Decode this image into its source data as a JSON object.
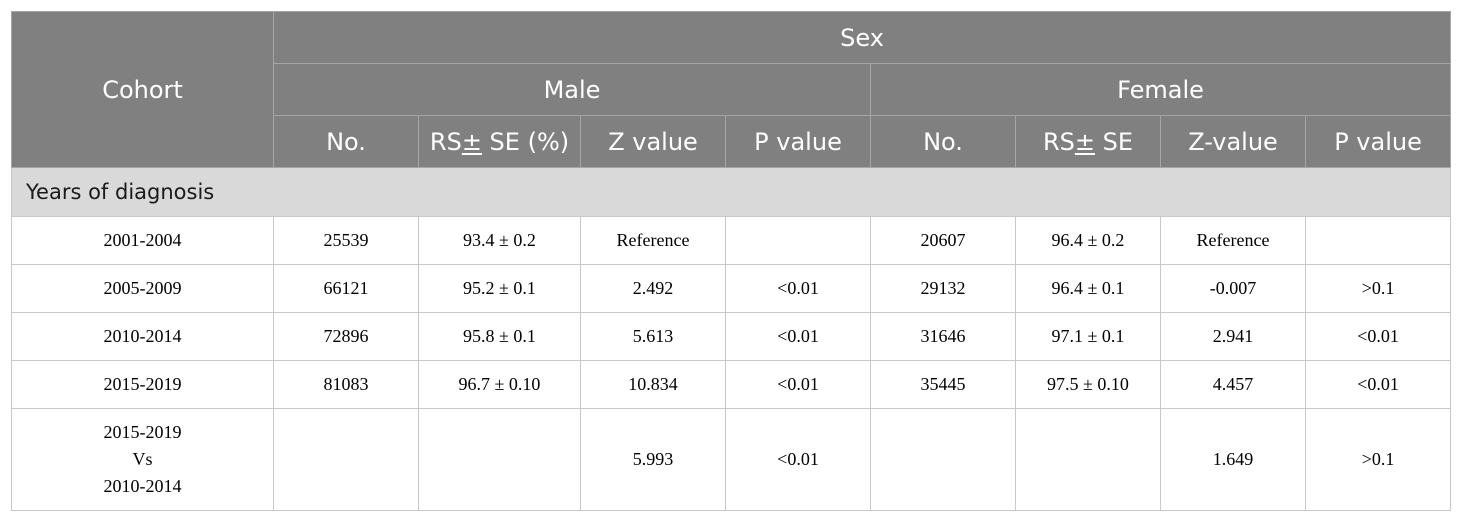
{
  "header": {
    "cohort": "Cohort",
    "group": "Sex",
    "male": "Male",
    "female": "Female",
    "columns": [
      "No.",
      "RS± SE (%)",
      "Z value",
      "P value",
      "No.",
      "RS± SE",
      "Z-value",
      "P value"
    ]
  },
  "section": "Years of diagnosis",
  "rows": [
    {
      "cohort": "2001-2004",
      "m_no": "25539",
      "m_rs": "93.4 ± 0.2",
      "m_z": "Reference",
      "m_p": "",
      "f_no": "20607",
      "f_rs": "96.4 ± 0.2",
      "f_z": "Reference",
      "f_p": ""
    },
    {
      "cohort": "2005-2009",
      "m_no": "66121",
      "m_rs": "95.2 ± 0.1",
      "m_z": "2.492",
      "m_p": "<0.01",
      "f_no": "29132",
      "f_rs": "96.4 ± 0.1",
      "f_z": "-0.007",
      "f_p": ">0.1"
    },
    {
      "cohort": "2010-2014",
      "m_no": "72896",
      "m_rs": "95.8 ± 0.1",
      "m_z": "5.613",
      "m_p": "<0.01",
      "f_no": "31646",
      "f_rs": "97.1 ± 0.1",
      "f_z": "2.941",
      "f_p": "<0.01"
    },
    {
      "cohort": "2015-2019",
      "m_no": "81083",
      "m_rs": "96.7 ± 0.10",
      "m_z": "10.834",
      "m_p": "<0.01",
      "f_no": "35445",
      "f_rs": "97.5 ± 0.10",
      "f_z": "4.457",
      "f_p": "<0.01"
    }
  ],
  "comparison": {
    "cohort_lines": [
      "2015-2019",
      "Vs",
      "2010-2014"
    ],
    "m_no": "",
    "m_rs": "",
    "m_z": "5.993",
    "m_p": "<0.01",
    "f_no": "",
    "f_rs": "",
    "f_z": "1.649",
    "f_p": ">0.1"
  }
}
